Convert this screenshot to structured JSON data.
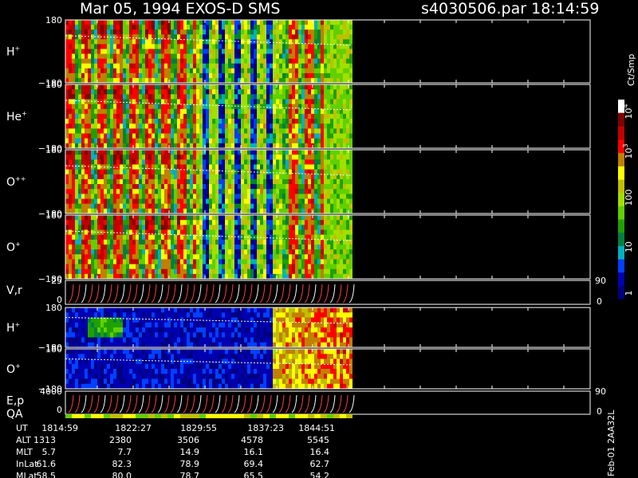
{
  "header": {
    "title": "Mar 05, 1994   EXOS-D SMS",
    "file": "s4030506.par  18:14:59"
  },
  "panels": [
    {
      "label": "H",
      "sup": "+",
      "top": "180",
      "bottom": "−180"
    },
    {
      "label": "He",
      "sup": "+",
      "top": "180",
      "bottom": "−180"
    },
    {
      "label": "O",
      "sup": "++",
      "top": "180",
      "bottom": "−180"
    },
    {
      "label": "O",
      "sup": "+",
      "top": "180",
      "bottom": "−180"
    }
  ],
  "vr": {
    "label": "V,r",
    "top": "25",
    "bottom": "0",
    "right_top": "90",
    "right_bottom": "0"
  },
  "lower_panels": [
    {
      "label": "H",
      "sup": "+",
      "top": "180",
      "bottom": "−180"
    },
    {
      "label": "O",
      "sup": "+",
      "top": "180",
      "bottom": "−180"
    }
  ],
  "ep": {
    "label": "E,p",
    "label2": "QA",
    "top": "4000",
    "bottom": "0",
    "right_top": "90",
    "right_bottom": "0"
  },
  "colorbar": {
    "unit": "Ct/Smp",
    "labels": [
      {
        "base": "10",
        "exp": "4"
      },
      {
        "base": "10",
        "exp": "3"
      },
      {
        "base": "100",
        "exp": ""
      },
      {
        "base": "10",
        "exp": ""
      },
      {
        "base": "1",
        "exp": ""
      }
    ]
  },
  "table": {
    "rows": [
      [
        "UT",
        "1814:59",
        "1822:27",
        "1829:55",
        "1837:23",
        "1844:51"
      ],
      [
        "ALT",
        "1313",
        "2380",
        "3506",
        "4578",
        "5545"
      ],
      [
        "MLT",
        "5.7",
        "7.7",
        "14.9",
        "16.1",
        "16.4"
      ],
      [
        "InLat",
        "61.6",
        "82.3",
        "78.9",
        "69.4",
        "62.7"
      ],
      [
        "MLat",
        "58.5",
        "80.0",
        "78.7",
        "65.5",
        "54.2"
      ]
    ]
  },
  "footer": "Feb-01 2AA32L"
}
